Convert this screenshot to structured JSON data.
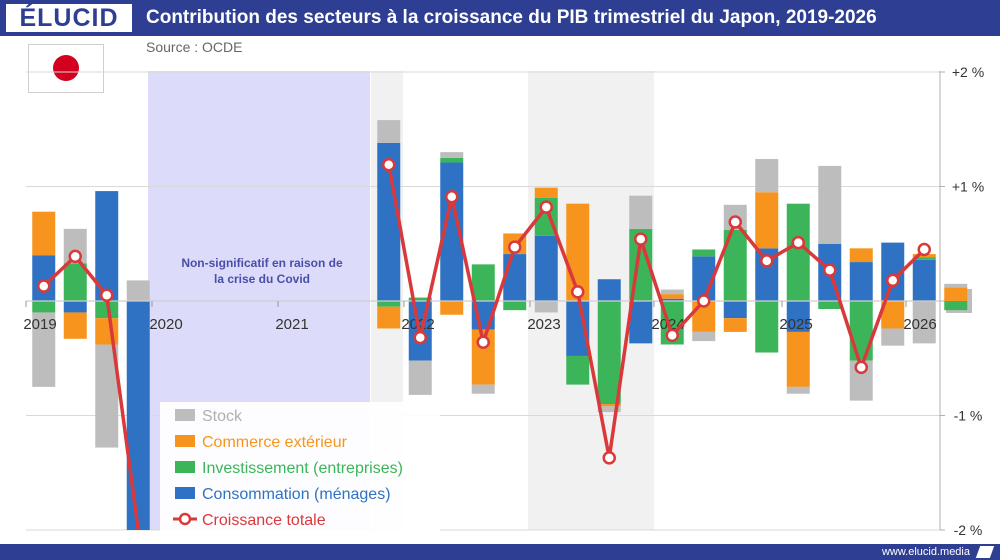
{
  "header": {
    "logo": "ÉLUCID",
    "title": "Contribution des secteurs à la croissance du PIB trimestriel du Japon, 2019-2026",
    "source": "Source : OCDE"
  },
  "footer": {
    "site": "www.elucid.media"
  },
  "colors": {
    "brand": "#2e3f93",
    "stock": "#bdbdbd",
    "commerce": "#f7941d",
    "investissement": "#3cb55a",
    "consommation": "#2f72c4",
    "croissance": "#d9393b",
    "covid_band": "#dcdcfa"
  },
  "flag_icon": "japan-flag-icon",
  "chart_data": {
    "type": "bar",
    "stacked": true,
    "x_tick_labels": [
      "2019",
      "2020",
      "2021",
      "2022",
      "2023",
      "2024",
      "2025",
      "2026"
    ],
    "y_tick_labels": [
      "+2 %",
      "+1 %",
      "0",
      "-1 %",
      "-2 %"
    ],
    "ylim": [
      -2,
      2
    ],
    "grid": true,
    "legend_position": "bottom-left",
    "annotation": "Non-significatif en raison de la crise du Covid",
    "quarters": [
      "2019-Q1",
      "2019-Q2",
      "2019-Q3",
      "2019-Q4",
      "2022-Q1",
      "2022-Q2",
      "2022-Q3",
      "2022-Q4",
      "2023-Q1",
      "2023-Q2",
      "2023-Q3",
      "2023-Q4",
      "2024-Q1",
      "2024-Q2",
      "2024-Q3",
      "2024-Q4",
      "2025-Q1",
      "2025-Q2",
      "2025-Q3",
      "2025-Q4",
      "2026-Q1",
      "2026-Q2",
      "2026-Q3",
      "2026-Q4"
    ],
    "series": [
      {
        "name": "Stock",
        "values": [
          -0.65,
          0.3,
          -0.9,
          0.18,
          0.2,
          -0.3,
          0.05,
          -0.08,
          0,
          -0.1,
          0,
          -0.05,
          0.29,
          0.04,
          -0.08,
          0.22,
          0.29,
          -0.06,
          0.68,
          -0.35,
          -0.15,
          -0.37,
          0.03,
          0
        ]
      },
      {
        "name": "Commerce extérieur",
        "values": [
          0.38,
          -0.23,
          -0.23,
          0,
          -0.19,
          0,
          -0.12,
          -0.48,
          0.18,
          0.09,
          0.85,
          -0.02,
          0,
          0.04,
          -0.27,
          -0.12,
          0.49,
          -0.48,
          0,
          0.12,
          -0.24,
          0.03,
          0.12,
          0
        ]
      },
      {
        "name": "Investissement (entreprises)",
        "values": [
          -0.1,
          0.33,
          -0.15,
          -0.02,
          -0.05,
          0.03,
          0.04,
          0.32,
          -0.08,
          0.33,
          -0.25,
          -0.9,
          0.63,
          -0.38,
          0.06,
          0.62,
          -0.45,
          0.85,
          -0.07,
          -0.52,
          0,
          0.02,
          -0.08,
          0
        ]
      },
      {
        "name": "Consommation (ménages)",
        "values": [
          0.4,
          -0.1,
          0.96,
          -2.0,
          1.38,
          -0.52,
          1.21,
          -0.25,
          0.41,
          0.57,
          -0.48,
          0.19,
          -0.37,
          0.02,
          0.39,
          -0.15,
          0.46,
          -0.27,
          0.5,
          0.34,
          0.51,
          0.36,
          0,
          0
        ]
      },
      {
        "name": "Croissance totale",
        "type": "line",
        "values": [
          0.13,
          0.39,
          0.05,
          -2.0,
          1.19,
          -0.32,
          0.91,
          -0.36,
          0.47,
          0.82,
          0.08,
          -1.37,
          0.54,
          -0.3,
          0,
          0.69,
          0.35,
          0.51,
          0.27,
          -0.58,
          0.18,
          0.45
        ]
      }
    ]
  }
}
